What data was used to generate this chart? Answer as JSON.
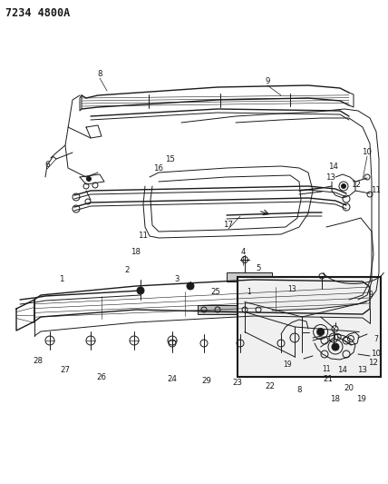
{
  "title_code": "7234 4800A",
  "bg_color": "#ffffff",
  "line_color": "#1a1a1a",
  "fig_width": 4.28,
  "fig_height": 5.33,
  "dpi": 100,
  "title_fontsize": 8.5,
  "label_fontsize": 6.2
}
